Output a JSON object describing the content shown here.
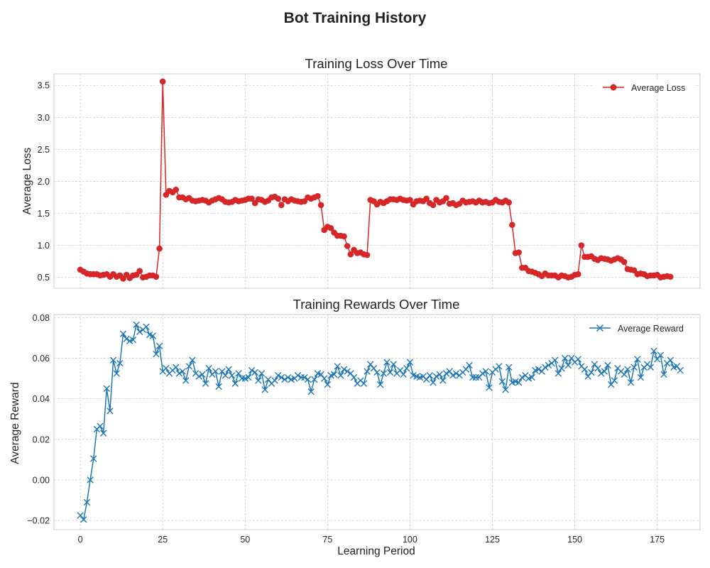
{
  "title": "Bot Training History",
  "colors": {
    "loss": "#d62728",
    "reward": "#1f77b4"
  },
  "chart_data": [
    {
      "type": "line",
      "title": "Training Loss Over Time",
      "xlabel": "",
      "ylabel": "Average Loss",
      "xlim": [
        -8,
        188
      ],
      "ylim": [
        0.33,
        3.68
      ],
      "xticks": [
        0,
        25,
        50,
        75,
        100,
        125,
        150,
        175
      ],
      "xtick_labels_visible": false,
      "yticks": [
        0.5,
        1.0,
        1.5,
        2.0,
        2.5,
        3.0,
        3.5
      ],
      "ytick_labels": [
        "0.5",
        "1.0",
        "1.5",
        "2.0",
        "2.5",
        "3.0",
        "3.5"
      ],
      "grid": true,
      "legend_position": "top-right",
      "series": [
        {
          "name": "Average Loss",
          "marker": "circle",
          "values": [
            0.62,
            0.59,
            0.56,
            0.55,
            0.55,
            0.55,
            0.53,
            0.54,
            0.55,
            0.51,
            0.55,
            0.51,
            0.53,
            0.48,
            0.54,
            0.49,
            0.53,
            0.54,
            0.6,
            0.5,
            0.51,
            0.53,
            0.53,
            0.51,
            0.95,
            3.56,
            1.79,
            1.85,
            1.83,
            1.87,
            1.75,
            1.75,
            1.72,
            1.74,
            1.7,
            1.69,
            1.7,
            1.71,
            1.7,
            1.67,
            1.7,
            1.72,
            1.74,
            1.72,
            1.68,
            1.67,
            1.68,
            1.71,
            1.69,
            1.7,
            1.71,
            1.73,
            1.73,
            1.66,
            1.72,
            1.71,
            1.68,
            1.7,
            1.75,
            1.76,
            1.73,
            1.63,
            1.72,
            1.69,
            1.72,
            1.7,
            1.69,
            1.68,
            1.69,
            1.75,
            1.73,
            1.75,
            1.77,
            1.63,
            1.24,
            1.29,
            1.27,
            1.2,
            1.15,
            1.15,
            1.14,
            0.99,
            0.86,
            0.93,
            0.88,
            0.89,
            0.86,
            0.85,
            1.71,
            1.69,
            1.64,
            1.68,
            1.66,
            1.69,
            1.72,
            1.72,
            1.71,
            1.73,
            1.71,
            1.7,
            1.71,
            1.64,
            1.69,
            1.7,
            1.69,
            1.73,
            1.66,
            1.63,
            1.71,
            1.67,
            1.69,
            1.74,
            1.65,
            1.66,
            1.63,
            1.65,
            1.7,
            1.67,
            1.68,
            1.69,
            1.67,
            1.7,
            1.67,
            1.68,
            1.66,
            1.67,
            1.71,
            1.68,
            1.67,
            1.7,
            1.67,
            1.32,
            0.88,
            0.89,
            0.65,
            0.65,
            0.6,
            0.59,
            0.57,
            0.55,
            0.52,
            0.56,
            0.53,
            0.53,
            0.53,
            0.5,
            0.53,
            0.52,
            0.5,
            0.51,
            0.54,
            0.55,
            1.0,
            0.82,
            0.82,
            0.83,
            0.79,
            0.77,
            0.8,
            0.79,
            0.78,
            0.76,
            0.78,
            0.8,
            0.78,
            0.74,
            0.63,
            0.62,
            0.61,
            0.55,
            0.56,
            0.55,
            0.52,
            0.53,
            0.53,
            0.54,
            0.5,
            0.51,
            0.52,
            0.51
          ]
        }
      ]
    },
    {
      "type": "line",
      "title": "Training Rewards Over Time",
      "xlabel": "Learning Period",
      "ylabel": "Average Reward",
      "xlim": [
        -8,
        188
      ],
      "ylim": [
        -0.0245,
        0.0815
      ],
      "xticks": [
        0,
        25,
        50,
        75,
        100,
        125,
        150,
        175
      ],
      "xtick_labels": [
        "0",
        "25",
        "50",
        "75",
        "100",
        "125",
        "150",
        "175"
      ],
      "yticks": [
        -0.02,
        0.0,
        0.02,
        0.04,
        0.06,
        0.08
      ],
      "ytick_labels": [
        "−0.02",
        "0.00",
        "0.02",
        "0.04",
        "0.06",
        "0.08"
      ],
      "grid": true,
      "legend_position": "top-right",
      "series": [
        {
          "name": "Average Reward",
          "marker": "x",
          "values": [
            -0.0175,
            -0.0195,
            -0.011,
            0.0,
            0.0105,
            0.025,
            0.0265,
            0.023,
            0.045,
            0.034,
            0.059,
            0.0525,
            0.0575,
            0.072,
            0.0695,
            0.0685,
            0.069,
            0.0765,
            0.073,
            0.074,
            0.0755,
            0.0715,
            0.071,
            0.062,
            0.066,
            0.0535,
            0.055,
            0.0525,
            0.054,
            0.0555,
            0.0525,
            0.0535,
            0.049,
            0.056,
            0.059,
            0.0525,
            0.051,
            0.052,
            0.0475,
            0.055,
            0.052,
            0.0535,
            0.046,
            0.0535,
            0.0515,
            0.0545,
            0.0515,
            0.0475,
            0.0525,
            0.05,
            0.05,
            0.0505,
            0.054,
            0.053,
            0.049,
            0.0525,
            0.0445,
            0.0495,
            0.0475,
            0.049,
            0.0515,
            0.0505,
            0.0495,
            0.0505,
            0.0495,
            0.05,
            0.0515,
            0.0505,
            0.0505,
            0.0495,
            0.0435,
            0.0495,
            0.0525,
            0.052,
            0.05,
            0.047,
            0.0515,
            0.052,
            0.056,
            0.0515,
            0.0545,
            0.0535,
            0.0525,
            0.0505,
            0.0475,
            0.049,
            0.0475,
            0.0535,
            0.057,
            0.055,
            0.053,
            0.047,
            0.0525,
            0.058,
            0.053,
            0.057,
            0.0525,
            0.054,
            0.052,
            0.055,
            0.058,
            0.0515,
            0.051,
            0.0505,
            0.051,
            0.0495,
            0.0515,
            0.048,
            0.051,
            0.052,
            0.049,
            0.0525,
            0.0535,
            0.0515,
            0.0525,
            0.0515,
            0.053,
            0.0545,
            0.0565,
            0.0505,
            0.0505,
            0.0505,
            0.0525,
            0.0535,
            0.0455,
            0.053,
            0.0545,
            0.056,
            0.0485,
            0.0445,
            0.0555,
            0.048,
            0.0485,
            0.048,
            0.0505,
            0.0515,
            0.05,
            0.0505,
            0.054,
            0.0545,
            0.0535,
            0.0555,
            0.0565,
            0.0575,
            0.059,
            0.0525,
            0.055,
            0.06,
            0.0565,
            0.06,
            0.058,
            0.0595,
            0.056,
            0.0545,
            0.051,
            0.053,
            0.057,
            0.055,
            0.0525,
            0.0535,
            0.0565,
            0.047,
            0.049,
            0.055,
            0.0535,
            0.052,
            0.0545,
            0.048,
            0.0555,
            0.0595,
            0.0505,
            0.0555,
            0.057,
            0.0555,
            0.0635,
            0.0595,
            0.0615,
            0.052,
            0.0575,
            0.059,
            0.0555,
            0.056,
            0.054
          ]
        }
      ]
    }
  ]
}
